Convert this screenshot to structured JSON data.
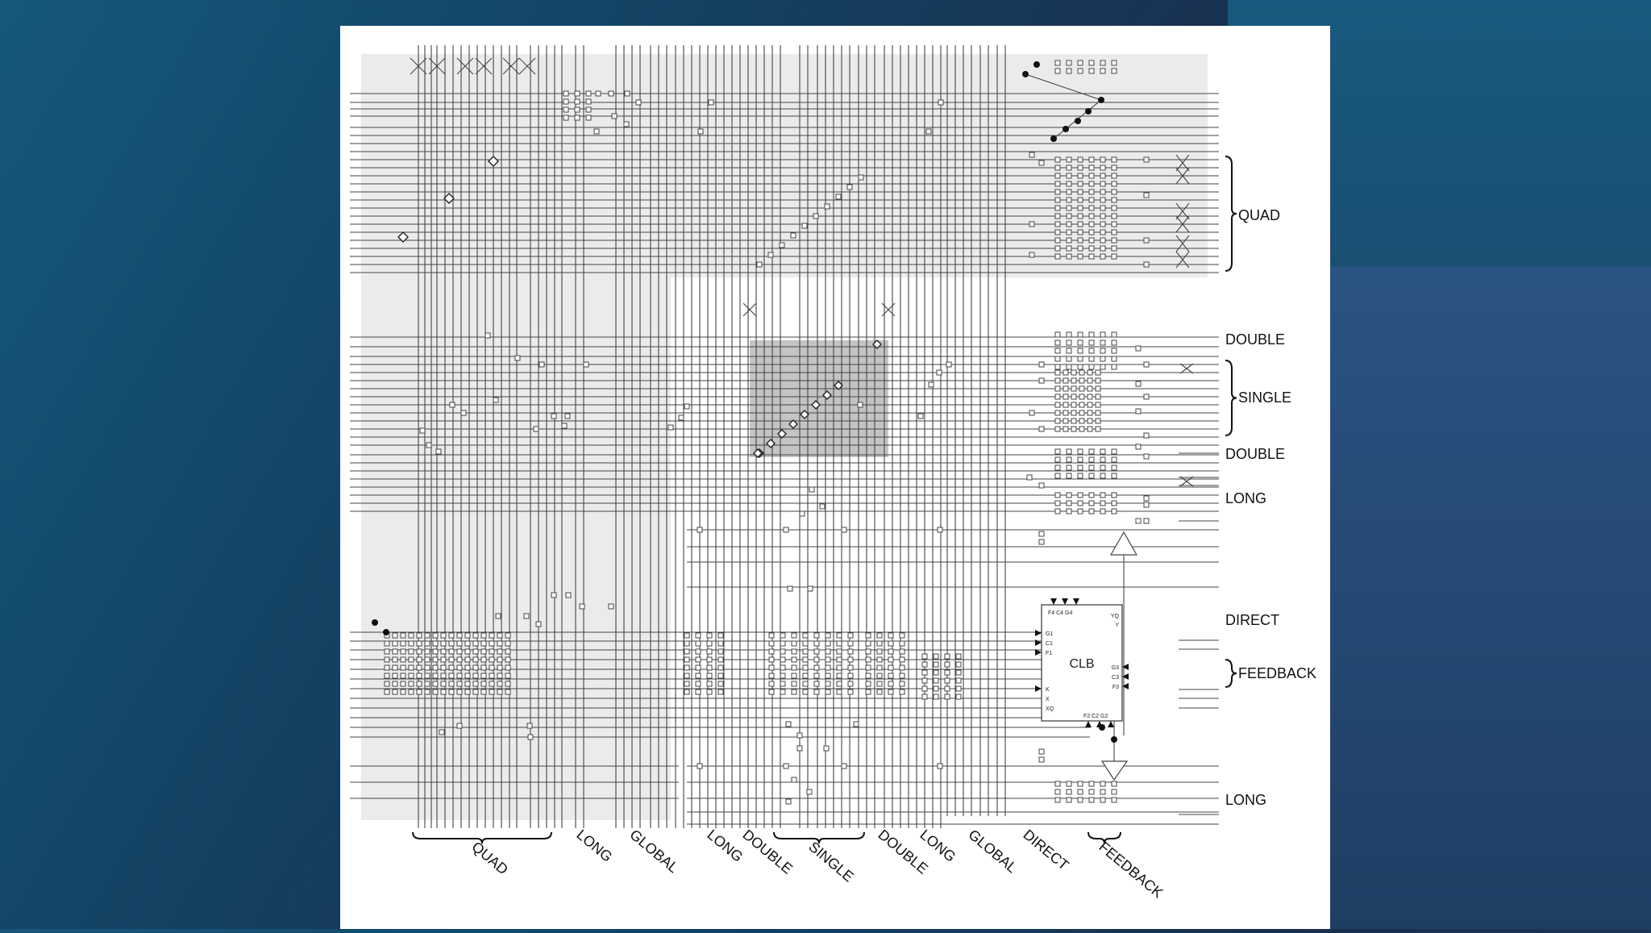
{
  "diagram": {
    "right_labels": {
      "quad": "QUAD",
      "double_top": "DOUBLE",
      "single": "SINGLE",
      "double_bottom": "DOUBLE",
      "long_top": "LONG",
      "direct": "DIRECT",
      "feedback": "FEEDBACK",
      "long_bottom": "LONG"
    },
    "bottom_labels": {
      "quad": "QUAD",
      "long1": "LONG",
      "global1": "GLOBAL",
      "long2": "LONG",
      "double1": "DOUBLE",
      "single": "SINGLE",
      "double2": "DOUBLE",
      "long3": "LONG",
      "global2": "GLOBAL",
      "direct": "DIRECT",
      "feedback": "FEEDBACK"
    },
    "clb": {
      "title": "CLB",
      "top_pins": "F4 C4 G4",
      "bottom_pins": "F2 C2 G2",
      "pin_yq": "YQ",
      "pin_y": "Y",
      "pin_g1": "G1",
      "pin_c1": "C1",
      "pin_f1": "F1",
      "pin_k": "K",
      "pin_x": "X",
      "pin_xq": "XQ",
      "pin_g3": "G3",
      "pin_c3": "C3",
      "pin_f3": "F3"
    }
  }
}
